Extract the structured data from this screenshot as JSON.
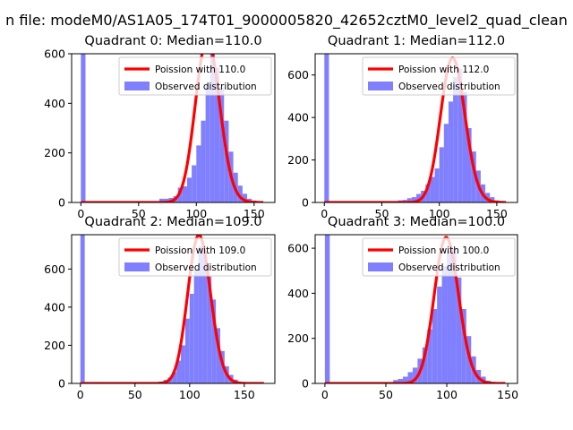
{
  "figure": {
    "suptitle": "n file: modeM0/AS1A05_174T01_9000005820_42652cztM0_level2_quad_clean"
  },
  "colors": {
    "fit": "#ff0000",
    "hist": "#8080ff",
    "axis": "#000000"
  },
  "chart_data": [
    {
      "type": "bar",
      "title": "Quadrant 0: Median=110.0",
      "xlim": [
        -8,
        168
      ],
      "ylim": [
        0,
        600
      ],
      "xticks": [
        0,
        50,
        100,
        150
      ],
      "yticks": [
        0,
        200,
        400,
        600
      ],
      "xlabel": "",
      "ylabel": "",
      "median": 110.0,
      "legend": [
        "Poission with 110.0",
        "Observed distribution"
      ],
      "legend_position": "upper right",
      "bin_width": 4,
      "hist": [
        [
          0,
          610
        ],
        [
          68,
          15
        ],
        [
          72,
          15
        ],
        [
          76,
          18
        ],
        [
          80,
          25
        ],
        [
          84,
          60
        ],
        [
          88,
          65
        ],
        [
          92,
          100
        ],
        [
          96,
          150
        ],
        [
          100,
          230
        ],
        [
          104,
          330
        ],
        [
          108,
          480
        ],
        [
          112,
          610
        ],
        [
          116,
          545
        ],
        [
          120,
          465
        ],
        [
          124,
          330
        ],
        [
          128,
          205
        ],
        [
          132,
          120
        ],
        [
          136,
          68
        ],
        [
          140,
          35
        ],
        [
          144,
          15
        ],
        [
          148,
          8
        ]
      ]
    },
    {
      "type": "bar",
      "title": "Quadrant 1: Median=112.0",
      "xlim": [
        -8,
        168
      ],
      "ylim": [
        0,
        700
      ],
      "xticks": [
        0,
        50,
        100,
        150
      ],
      "yticks": [
        0,
        200,
        400,
        600
      ],
      "xlabel": "",
      "ylabel": "",
      "median": 112.0,
      "legend": [
        "Poission with 112.0",
        "Observed distribution"
      ],
      "legend_position": "upper right",
      "bin_width": 4,
      "hist": [
        [
          0,
          700
        ],
        [
          64,
          10
        ],
        [
          68,
          12
        ],
        [
          72,
          20
        ],
        [
          76,
          25
        ],
        [
          80,
          40
        ],
        [
          84,
          55
        ],
        [
          88,
          85
        ],
        [
          92,
          120
        ],
        [
          96,
          160
        ],
        [
          100,
          260
        ],
        [
          104,
          370
        ],
        [
          108,
          475
        ],
        [
          112,
          590
        ],
        [
          116,
          630
        ],
        [
          120,
          520
        ],
        [
          124,
          350
        ],
        [
          128,
          240
        ],
        [
          132,
          150
        ],
        [
          136,
          85
        ],
        [
          140,
          45
        ],
        [
          144,
          25
        ],
        [
          148,
          10
        ]
      ]
    },
    {
      "type": "bar",
      "title": "Quadrant 2: Median=109.0",
      "xlim": [
        -8,
        178
      ],
      "ylim": [
        0,
        780
      ],
      "xticks": [
        0,
        50,
        100,
        150
      ],
      "yticks": [
        0,
        200,
        400,
        600
      ],
      "xlabel": "",
      "ylabel": "",
      "median": 109.0,
      "legend": [
        "Poission with 109.0",
        "Observed distribution"
      ],
      "legend_position": "upper right",
      "bin_width": 4,
      "hist": [
        [
          0,
          780
        ],
        [
          72,
          10
        ],
        [
          76,
          18
        ],
        [
          80,
          30
        ],
        [
          84,
          60
        ],
        [
          88,
          120
        ],
        [
          92,
          200
        ],
        [
          96,
          340
        ],
        [
          100,
          470
        ],
        [
          104,
          600
        ],
        [
          108,
          720
        ],
        [
          112,
          690
        ],
        [
          116,
          560
        ],
        [
          120,
          440
        ],
        [
          124,
          290
        ],
        [
          128,
          170
        ],
        [
          132,
          90
        ],
        [
          136,
          45
        ],
        [
          140,
          20
        ],
        [
          144,
          8
        ]
      ]
    },
    {
      "type": "bar",
      "title": "Quadrant 3: Median=100.0",
      "xlim": [
        -8,
        158
      ],
      "ylim": [
        0,
        660
      ],
      "xticks": [
        0,
        50,
        100,
        150
      ],
      "yticks": [
        0,
        200,
        400,
        600
      ],
      "xlabel": "",
      "ylabel": "",
      "median": 100.0,
      "legend": [
        "Poission with 100.0",
        "Observed distribution"
      ],
      "legend_position": "upper right",
      "bin_width": 4,
      "hist": [
        [
          0,
          660
        ],
        [
          56,
          15
        ],
        [
          60,
          20
        ],
        [
          64,
          30
        ],
        [
          68,
          50
        ],
        [
          72,
          70
        ],
        [
          76,
          110
        ],
        [
          80,
          160
        ],
        [
          84,
          240
        ],
        [
          88,
          330
        ],
        [
          92,
          430
        ],
        [
          96,
          520
        ],
        [
          100,
          590
        ],
        [
          104,
          600
        ],
        [
          108,
          470
        ],
        [
          112,
          330
        ],
        [
          116,
          210
        ],
        [
          120,
          120
        ],
        [
          124,
          60
        ],
        [
          128,
          30
        ],
        [
          132,
          12
        ]
      ]
    }
  ]
}
